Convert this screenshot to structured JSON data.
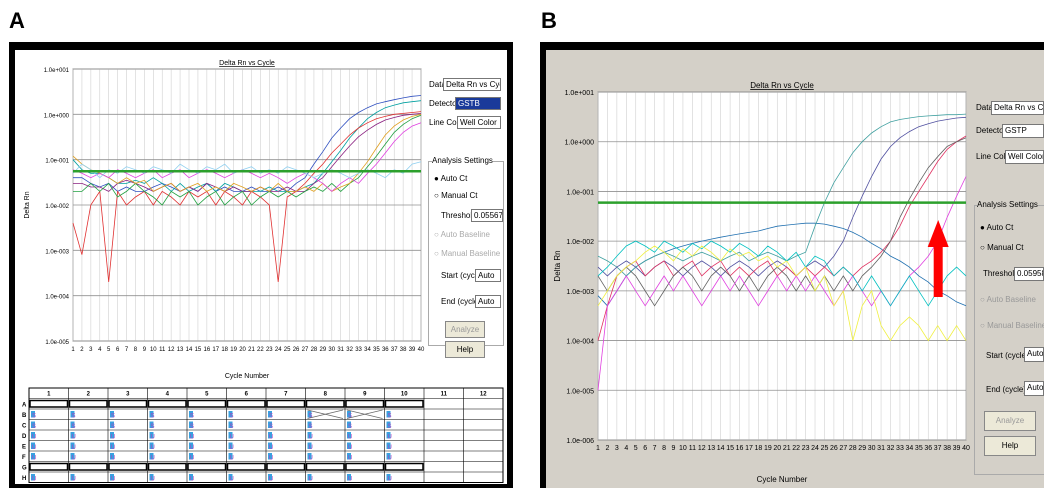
{
  "panels": [
    {
      "letter": "A"
    },
    {
      "letter": "B"
    }
  ],
  "controls_a": {
    "data_label": "Data:",
    "data_value": "Delta Rn vs Cycle",
    "detector_label": "Detector:",
    "detector_value": "GSTB",
    "line_color_label": "Line Color:",
    "line_color_value": "Well Color",
    "analysis_settings": "Analysis Settings",
    "auto_ct": "Auto Ct",
    "manual_ct": "Manual Ct",
    "threshold_label": "Threshold:",
    "threshold_value": "0.0556716",
    "auto_baseline": "Auto Baseline",
    "manual_baseline": "Manual Baseline",
    "start_label": "Start (cycle):",
    "start_value": "Auto",
    "end_label": "End (cycle):",
    "end_value": "Auto",
    "analyze": "Analyze",
    "help": "Help"
  },
  "controls_b": {
    "data_label": "Data:",
    "data_value": "Delta Rn vs Cycle",
    "detector_label": "Detector:",
    "detector_value": "GSTP",
    "line_color_label": "Line Color:",
    "line_color_value": "Well Color",
    "analysis_settings": "Analysis Settings",
    "auto_ct": "Auto Ct",
    "manual_ct": "Manual Ct",
    "threshold_label": "Threshold:",
    "threshold_value": "0.0595812",
    "auto_baseline": "Auto Baseline",
    "manual_baseline": "Manual Baseline",
    "start_label": "Start (cycle):",
    "start_value": "Auto",
    "end_label": "End (cycle):",
    "end_value": "Auto",
    "analyze": "Analyze",
    "help": "Help"
  },
  "plate_a": {
    "columns": [
      "1",
      "2",
      "3",
      "4",
      "5",
      "6",
      "7",
      "8",
      "9",
      "10",
      "11",
      "12"
    ],
    "rows": [
      "A",
      "B",
      "C",
      "D",
      "E",
      "F",
      "G",
      "H"
    ],
    "well_letters": [
      "",
      "S",
      "S",
      "U",
      "U",
      "U",
      "",
      "U"
    ]
  },
  "colors": {
    "threshold": "#2ca02c",
    "arrow": "#ff0000",
    "window_b_bg": "#d4d0c8"
  },
  "chart_data": [
    {
      "type": "line",
      "title": "Delta Rn vs Cycle",
      "xlabel": "Cycle Number",
      "ylabel": "Delta Rn",
      "yscale": "log",
      "ylim": [
        1e-05,
        10
      ],
      "yticks": [
        "1.0e-005",
        "1.0e-004",
        "1.0e-003",
        "1.0e-002",
        "1.0e-001",
        "1.0e+000",
        "1.0e+001"
      ],
      "xlim": [
        1,
        40
      ],
      "threshold": 0.0556716,
      "grid": true,
      "series": [
        {
          "color": "#3050c0",
          "values": [
            0.04,
            0.04,
            0.03,
            0.025,
            0.03,
            0.02,
            0.025,
            0.02,
            0.02,
            0.025,
            0.03,
            0.025,
            0.02,
            0.025,
            0.02,
            0.03,
            0.02,
            0.025,
            0.02,
            0.02,
            0.025,
            0.02,
            0.02,
            0.025,
            0.02,
            0.03,
            0.04,
            0.08,
            0.15,
            0.3,
            0.5,
            0.8,
            1.1,
            1.4,
            1.7,
            1.9,
            2.1,
            2.3,
            2.5,
            2.6
          ]
        },
        {
          "color": "#00a0a0",
          "values": [
            0.1,
            0.06,
            0.05,
            0.05,
            0.04,
            0.03,
            0.03,
            0.035,
            0.03,
            0.04,
            0.03,
            0.02,
            0.03,
            0.02,
            0.025,
            0.03,
            0.02,
            0.03,
            0.025,
            0.02,
            0.02,
            0.02,
            0.025,
            0.02,
            0.02,
            0.02,
            0.025,
            0.03,
            0.05,
            0.09,
            0.16,
            0.3,
            0.5,
            0.8,
            1.1,
            1.4,
            1.6,
            1.8,
            1.9,
            2.0
          ]
        },
        {
          "color": "#e03030",
          "values": [
            0.004,
            0.0008,
            0.01,
            0.02,
            0.0002,
            0.02,
            0.01,
            0.015,
            0.02,
            0.01,
            0.02,
            0.015,
            0.01,
            0.02,
            0.015,
            0.02,
            0.01,
            0.02,
            0.015,
            0.01,
            0.02,
            0.015,
            0.01,
            0.0002,
            0.015,
            0.02,
            0.03,
            0.05,
            0.08,
            0.14,
            0.22,
            0.35,
            0.5,
            0.65,
            0.8,
            0.9,
            1.0,
            1.05,
            1.1,
            1.15
          ]
        },
        {
          "color": "#8a2080",
          "values": [
            0.03,
            0.03,
            0.025,
            0.025,
            0.02,
            0.03,
            0.035,
            0.03,
            0.025,
            0.02,
            0.025,
            0.03,
            0.02,
            0.025,
            0.02,
            0.03,
            0.025,
            0.02,
            0.025,
            0.02,
            0.02,
            0.025,
            0.02,
            0.02,
            0.025,
            0.02,
            0.02,
            0.03,
            0.04,
            0.07,
            0.12,
            0.2,
            0.32,
            0.45,
            0.6,
            0.75,
            0.85,
            0.95,
            1.0,
            1.05
          ]
        },
        {
          "color": "#20a040",
          "values": [
            0.02,
            0.02,
            0.03,
            0.02,
            0.03,
            0.015,
            0.02,
            0.03,
            0.02,
            0.015,
            0.01,
            0.02,
            0.015,
            0.02,
            0.01,
            0.015,
            0.02,
            0.01,
            0.015,
            0.02,
            0.01,
            0.015,
            0.02,
            0.015,
            0.02,
            0.015,
            0.02,
            0.025,
            0.02,
            0.03,
            0.02,
            0.03,
            0.04,
            0.07,
            0.12,
            0.22,
            0.4,
            0.6,
            0.8,
            0.95
          ]
        },
        {
          "color": "#e0a020",
          "values": [
            0.12,
            0.08,
            0.06,
            0.05,
            0.04,
            0.03,
            0.04,
            0.03,
            0.035,
            0.02,
            0.025,
            0.03,
            0.02,
            0.025,
            0.03,
            0.02,
            0.025,
            0.02,
            0.03,
            0.025,
            0.02,
            0.025,
            0.02,
            0.03,
            0.02,
            0.02,
            0.025,
            0.02,
            0.03,
            0.02,
            0.025,
            0.03,
            0.05,
            0.09,
            0.18,
            0.35,
            0.55,
            0.75,
            0.9,
            1.0
          ]
        },
        {
          "color": "#e040e0",
          "values": [
            0.06,
            0.05,
            0.04,
            0.05,
            0.04,
            0.06,
            0.05,
            0.04,
            0.05,
            0.06,
            0.04,
            0.05,
            0.06,
            0.04,
            0.05,
            0.06,
            0.05,
            0.04,
            0.05,
            0.06,
            0.05,
            0.04,
            0.05,
            0.04,
            0.03,
            0.04,
            0.05,
            0.04,
            0.03,
            0.02,
            0.03,
            0.04,
            0.03,
            0.05,
            0.08,
            0.14,
            0.25,
            0.4,
            0.55,
            0.65
          ]
        },
        {
          "color": "#90d0f0",
          "values": [
            0.05,
            0.08,
            0.06,
            0.04,
            0.06,
            0.05,
            0.07,
            0.06,
            0.05,
            0.07,
            0.06,
            0.05,
            0.08,
            0.06,
            0.05,
            0.07,
            0.06,
            0.08,
            0.05,
            0.06,
            0.07,
            0.05,
            0.06,
            0.05,
            0.07,
            0.06,
            0.05,
            0.04,
            0.05,
            0.06,
            0.05,
            0.04,
            0.05,
            0.06,
            0.05,
            0.04,
            0.06,
            0.05,
            0.08,
            0.09
          ]
        }
      ]
    },
    {
      "type": "line",
      "title": "Delta Rn vs Cycle",
      "xlabel": "Cycle Number",
      "ylabel": "Delta Rn",
      "yscale": "log",
      "ylim": [
        1e-06,
        10
      ],
      "yticks": [
        "1.0e-006",
        "1.0e-005",
        "1.0e-004",
        "1.0e-003",
        "1.0e-002",
        "1.0e-001",
        "1.0e+000",
        "1.0e+001"
      ],
      "xlim": [
        1,
        40
      ],
      "threshold": 0.0595812,
      "grid": true,
      "series": [
        {
          "color": "#2070b0",
          "values": [
            0.0008,
            0.0005,
            0.001,
            0.002,
            0.003,
            0.004,
            0.005,
            0.006,
            0.007,
            0.008,
            0.009,
            0.01,
            0.011,
            0.012,
            0.013,
            0.014,
            0.015,
            0.016,
            0.018,
            0.02,
            0.021,
            0.022,
            0.023,
            0.023,
            0.022,
            0.02,
            0.018,
            0.015,
            0.012,
            0.009,
            0.007,
            0.005,
            0.004,
            0.003,
            0.002,
            0.0015,
            0.001,
            0.0008,
            0.0006,
            0.0005
          ]
        },
        {
          "color": "#40a0a0",
          "values": [
            0.005,
            0.004,
            0.003,
            0.002,
            0.003,
            0.004,
            0.005,
            0.006,
            0.005,
            0.004,
            0.005,
            0.006,
            0.005,
            0.004,
            0.005,
            0.006,
            0.004,
            0.005,
            0.006,
            0.005,
            0.004,
            0.005,
            0.006,
            0.02,
            0.06,
            0.15,
            0.3,
            0.6,
            1.0,
            1.5,
            2.0,
            2.5,
            2.8,
            3.0,
            3.2,
            3.3,
            3.4,
            3.5,
            3.5,
            3.6
          ]
        },
        {
          "color": "#5050a0",
          "values": [
            0.003,
            0.002,
            0.003,
            0.004,
            0.003,
            0.002,
            0.003,
            0.004,
            0.003,
            0.002,
            0.003,
            0.004,
            0.003,
            0.002,
            0.003,
            0.004,
            0.003,
            0.002,
            0.003,
            0.004,
            0.003,
            0.002,
            0.003,
            0.004,
            0.003,
            0.005,
            0.01,
            0.03,
            0.08,
            0.2,
            0.45,
            0.8,
            1.2,
            1.6,
            2.0,
            2.3,
            2.6,
            2.8,
            3.0,
            3.1
          ]
        },
        {
          "color": "#e03060",
          "values": [
            0.0001,
            0.0005,
            0.002,
            0.003,
            0.004,
            0.002,
            0.003,
            0.004,
            0.002,
            0.003,
            0.004,
            0.002,
            0.003,
            0.004,
            0.002,
            0.003,
            0.002,
            0.003,
            0.004,
            0.002,
            0.003,
            0.002,
            0.003,
            0.002,
            0.003,
            0.002,
            0.003,
            0.002,
            0.003,
            0.004,
            0.006,
            0.01,
            0.02,
            0.05,
            0.1,
            0.2,
            0.4,
            0.7,
            1.0,
            1.3
          ]
        },
        {
          "color": "#606060",
          "values": [
            0.002,
            0.001,
            0.002,
            0.003,
            0.002,
            0.001,
            0.0005,
            0.001,
            0.002,
            0.003,
            0.002,
            0.001,
            0.002,
            0.003,
            0.002,
            0.001,
            0.002,
            0.001,
            0.002,
            0.003,
            0.002,
            0.001,
            0.002,
            0.001,
            0.002,
            0.001,
            0.002,
            0.001,
            0.002,
            0.003,
            0.005,
            0.01,
            0.03,
            0.07,
            0.15,
            0.3,
            0.5,
            0.8,
            1.0,
            1.2
          ]
        },
        {
          "color": "#e040e0",
          "values": [
            1e-05,
            0.0005,
            0.001,
            0.002,
            0.001,
            0.0005,
            0.001,
            0.002,
            0.001,
            0.002,
            0.001,
            0.0005,
            0.001,
            0.002,
            0.001,
            0.002,
            0.001,
            0.0005,
            0.001,
            0.002,
            0.001,
            0.002,
            0.001,
            0.002,
            0.001,
            0.0005,
            0.001,
            0.002,
            0.001,
            0.0005,
            0.001,
            0.0005,
            0.001,
            0.002,
            0.003,
            0.005,
            0.01,
            0.03,
            0.08,
            0.2
          ]
        },
        {
          "color": "#00c0c0",
          "values": [
            0.002,
            0.003,
            0.005,
            0.008,
            0.01,
            0.008,
            0.006,
            0.01,
            0.008,
            0.006,
            0.009,
            0.007,
            0.01,
            0.008,
            0.006,
            0.009,
            0.007,
            0.005,
            0.008,
            0.006,
            0.004,
            0.006,
            0.003,
            0.005,
            0.004,
            0.002,
            0.003,
            0.002,
            0.001,
            0.002,
            0.001,
            0.0005,
            0.001,
            0.002,
            0.001,
            0.0005,
            0.001,
            0.002,
            0.003,
            0.002
          ]
        },
        {
          "color": "#f0f040",
          "values": [
            0.0005,
            0.001,
            0.002,
            0.003,
            0.004,
            0.006,
            0.008,
            0.006,
            0.004,
            0.007,
            0.005,
            0.008,
            0.006,
            0.004,
            0.007,
            0.005,
            0.006,
            0.004,
            0.005,
            0.003,
            0.004,
            0.002,
            0.003,
            0.001,
            0.002,
            0.0005,
            0.001,
            0.0001,
            0.0005,
            0.001,
            0.0002,
            0.0001,
            0.0002,
            0.0003,
            0.0002,
            0.0001,
            0.0002,
            0.0001,
            0.0002,
            0.0001
          ]
        }
      ]
    }
  ]
}
